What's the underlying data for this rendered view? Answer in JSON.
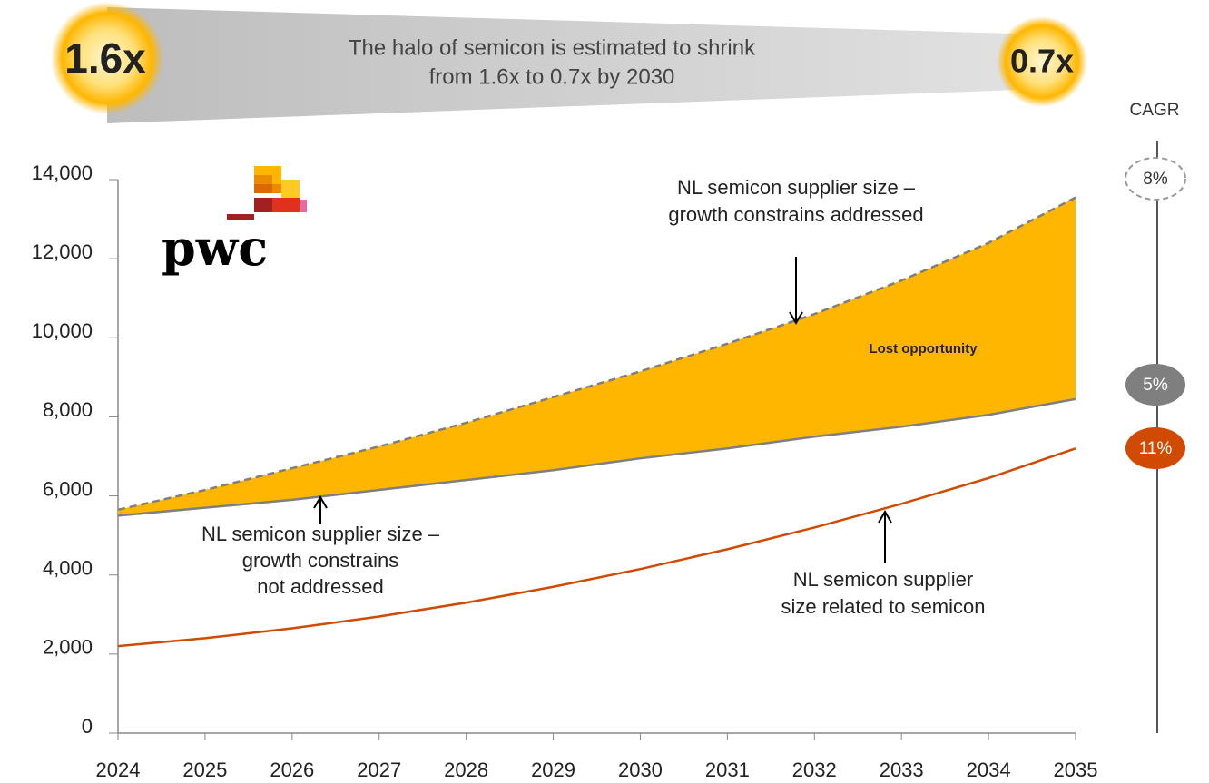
{
  "chart_data": {
    "type": "line",
    "logo": "pwc",
    "halo": {
      "from": "1.6x",
      "to": "0.7x",
      "text": [
        "The halo of semicon is estimated to shrink",
        "from 1.6x to 0.7x by 2030"
      ]
    },
    "cagr": {
      "label": "CAGR",
      "values": [
        8,
        5,
        11
      ],
      "value_labels": [
        "8%",
        "5%",
        "11%"
      ]
    },
    "x": [
      2024,
      2025,
      2026,
      2027,
      2028,
      2029,
      2030,
      2031,
      2032,
      2033,
      2034,
      2035
    ],
    "series": [
      {
        "color": "#7f7f7f",
        "dashed": true,
        "values": [
          5650,
          6150,
          6700,
          7250,
          7850,
          8500,
          9150,
          9850,
          10600,
          11450,
          12400,
          13550
        ]
      },
      {
        "color": "#7f7f7f",
        "values": [
          5500,
          5700,
          5900,
          6150,
          6400,
          6650,
          6950,
          7200,
          7500,
          7750,
          8050,
          8450
        ]
      },
      {
        "color": "#d04a02",
        "values": [
          2200,
          2400,
          2650,
          2950,
          3300,
          3700,
          4150,
          4650,
          5200,
          5800,
          6450,
          7200
        ]
      }
    ],
    "area_color": "#ffb600",
    "annotations": [
      {
        "lines": [
          "NL semicon supplier size –",
          "growth constrains addressed"
        ]
      },
      {
        "lines": [
          "NL semicon supplier size –",
          "growth constrains",
          "not addressed"
        ]
      },
      {
        "lines": [
          "NL semicon supplier",
          "size related to semicon"
        ]
      },
      {
        "lines": [
          "Lost opportunity"
        ]
      }
    ],
    "xlim": [
      2024,
      2035
    ],
    "xticks": [
      2024,
      2025,
      2026,
      2027,
      2028,
      2029,
      2030,
      2031,
      2032,
      2033,
      2034,
      2035
    ],
    "ylim": [
      0,
      14000
    ],
    "yticks": [
      0,
      {
        "value": 2000,
        "label": "2,000"
      },
      {
        "value": 4000,
        "label": "4,000"
      },
      {
        "value": 6000,
        "label": "6,000"
      },
      {
        "value": 8000,
        "label": "8,000"
      },
      {
        "value": 10000,
        "label": "10,000"
      },
      {
        "value": 12000,
        "label": "12,000"
      },
      {
        "value": 14000,
        "label": "14,000"
      }
    ]
  }
}
